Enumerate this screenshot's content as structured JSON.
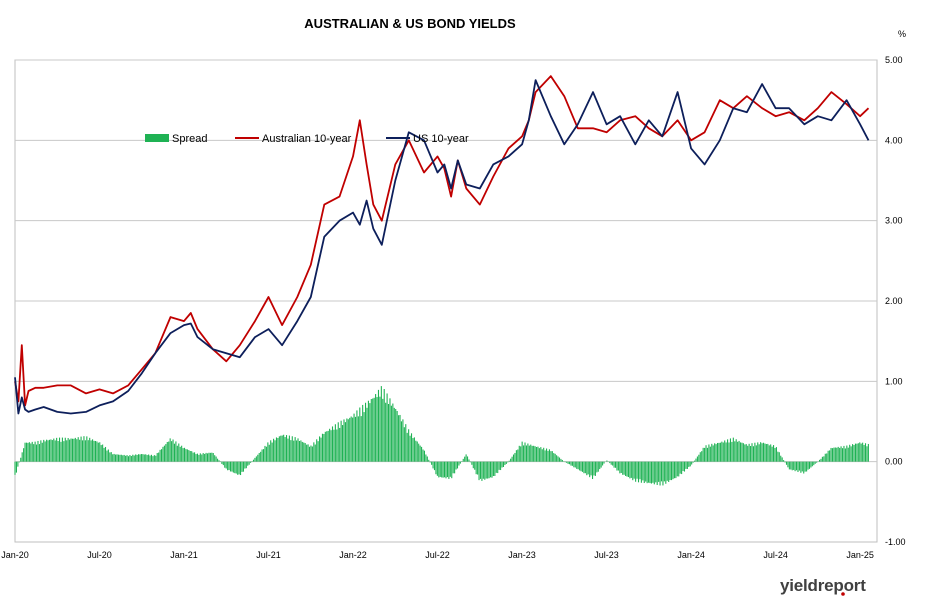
{
  "chart_data": {
    "type": "line",
    "title": "AUSTRALIAN & US BOND YIELDS",
    "unit_label": "%",
    "xlabel": "",
    "ylabel": "",
    "y_axis_position": "right",
    "ylim": [
      -1.0,
      5.0
    ],
    "yticks": [
      "-1.00",
      "0.00",
      "1.00",
      "2.00",
      "3.00",
      "4.00",
      "5.00"
    ],
    "xlim": [
      "Jan-20",
      "Jan-25"
    ],
    "xticks": [
      "Jan-20",
      "Jul-20",
      "Jan-21",
      "Jul-21",
      "Jan-22",
      "Jul-22",
      "Jan-23",
      "Jul-23",
      "Jan-24",
      "Jul-24",
      "Jan-25"
    ],
    "grid": "horizontal",
    "legend_position": "upper-left",
    "series": [
      {
        "name": "Spread",
        "type": "bar",
        "color": "#1fb254",
        "x": [
          0.0,
          0.06,
          0.12,
          0.18,
          0.25,
          0.33,
          0.42,
          0.5,
          0.58,
          0.67,
          0.75,
          0.83,
          0.92,
          1.0,
          1.08,
          1.17,
          1.25,
          1.33,
          1.42,
          1.5,
          1.58,
          1.67,
          1.75,
          1.83,
          1.92,
          2.0,
          2.08,
          2.17,
          2.25,
          2.33,
          2.42,
          2.5,
          2.58,
          2.67,
          2.75,
          2.83,
          2.92,
          3.0,
          3.08,
          3.17,
          3.25,
          3.33,
          3.42,
          3.5,
          3.58,
          3.67,
          3.75,
          3.83,
          3.92,
          4.0,
          4.08,
          4.17,
          4.25,
          4.33,
          4.42,
          4.5,
          4.58,
          4.67,
          4.75,
          4.83,
          4.92,
          5.0,
          5.05
        ],
        "values": [
          -0.2,
          0.25,
          0.25,
          0.28,
          0.3,
          0.3,
          0.32,
          0.25,
          0.1,
          0.08,
          0.1,
          0.08,
          0.3,
          0.18,
          0.1,
          0.12,
          -0.1,
          -0.18,
          0.05,
          0.25,
          0.35,
          0.3,
          0.2,
          0.38,
          0.5,
          0.6,
          0.75,
          0.95,
          0.7,
          0.4,
          0.15,
          -0.2,
          -0.22,
          0.1,
          -0.25,
          -0.2,
          0.0,
          0.25,
          0.2,
          0.15,
          0.0,
          -0.1,
          -0.22,
          0.02,
          -0.15,
          -0.25,
          -0.28,
          -0.3,
          -0.2,
          -0.05,
          0.2,
          0.25,
          0.3,
          0.22,
          0.25,
          0.2,
          -0.1,
          -0.15,
          0.0,
          0.18,
          0.2,
          0.25,
          0.22
        ]
      },
      {
        "name": "Australian 10-year",
        "type": "line",
        "color": "#c00000",
        "x": [
          0.0,
          0.02,
          0.04,
          0.06,
          0.08,
          0.12,
          0.17,
          0.25,
          0.33,
          0.42,
          0.5,
          0.58,
          0.67,
          0.75,
          0.83,
          0.92,
          1.0,
          1.04,
          1.08,
          1.17,
          1.25,
          1.33,
          1.42,
          1.5,
          1.58,
          1.67,
          1.75,
          1.83,
          1.92,
          2.0,
          2.04,
          2.08,
          2.12,
          2.17,
          2.25,
          2.33,
          2.42,
          2.5,
          2.54,
          2.58,
          2.62,
          2.67,
          2.75,
          2.83,
          2.92,
          3.0,
          3.04,
          3.08,
          3.17,
          3.25,
          3.33,
          3.42,
          3.5,
          3.58,
          3.67,
          3.75,
          3.83,
          3.92,
          4.0,
          4.08,
          4.17,
          4.25,
          4.33,
          4.42,
          4.5,
          4.58,
          4.67,
          4.75,
          4.83,
          4.92,
          5.0,
          5.05
        ],
        "values": [
          1.0,
          0.75,
          1.45,
          0.7,
          0.88,
          0.92,
          0.92,
          0.95,
          0.95,
          0.85,
          0.9,
          0.85,
          0.95,
          1.15,
          1.35,
          1.8,
          1.75,
          1.85,
          1.65,
          1.4,
          1.25,
          1.45,
          1.75,
          2.05,
          1.7,
          2.05,
          2.45,
          3.2,
          3.3,
          3.8,
          4.25,
          3.7,
          3.2,
          3.0,
          3.7,
          4.0,
          3.6,
          3.8,
          3.65,
          3.3,
          3.75,
          3.4,
          3.2,
          3.55,
          3.9,
          4.05,
          4.25,
          4.6,
          4.8,
          4.55,
          4.15,
          4.15,
          4.1,
          4.25,
          4.3,
          4.15,
          4.05,
          4.25,
          4.0,
          4.1,
          4.5,
          4.4,
          4.55,
          4.4,
          4.3,
          4.35,
          4.25,
          4.4,
          4.6,
          4.45,
          4.3,
          4.4
        ]
      },
      {
        "name": "US 10-year",
        "type": "line",
        "color": "#0d1f5b",
        "x": [
          0.0,
          0.02,
          0.04,
          0.06,
          0.08,
          0.12,
          0.17,
          0.25,
          0.33,
          0.42,
          0.5,
          0.58,
          0.67,
          0.75,
          0.83,
          0.92,
          1.0,
          1.04,
          1.08,
          1.17,
          1.25,
          1.33,
          1.42,
          1.5,
          1.58,
          1.67,
          1.75,
          1.83,
          1.92,
          2.0,
          2.04,
          2.08,
          2.12,
          2.17,
          2.25,
          2.33,
          2.42,
          2.5,
          2.54,
          2.58,
          2.62,
          2.67,
          2.75,
          2.83,
          2.92,
          3.0,
          3.04,
          3.08,
          3.17,
          3.25,
          3.33,
          3.42,
          3.5,
          3.58,
          3.67,
          3.75,
          3.83,
          3.92,
          4.0,
          4.08,
          4.17,
          4.25,
          4.33,
          4.42,
          4.5,
          4.58,
          4.67,
          4.75,
          4.83,
          4.92,
          5.0,
          5.05
        ],
        "values": [
          1.05,
          0.6,
          0.8,
          0.65,
          0.62,
          0.65,
          0.68,
          0.62,
          0.6,
          0.62,
          0.7,
          0.75,
          0.88,
          1.1,
          1.35,
          1.6,
          1.7,
          1.72,
          1.55,
          1.4,
          1.35,
          1.3,
          1.55,
          1.65,
          1.45,
          1.75,
          2.05,
          2.8,
          3.0,
          3.1,
          2.95,
          3.25,
          2.9,
          2.7,
          3.5,
          4.1,
          4.0,
          3.6,
          3.7,
          3.4,
          3.75,
          3.45,
          3.4,
          3.7,
          3.8,
          3.95,
          4.25,
          4.75,
          4.3,
          3.95,
          4.2,
          4.6,
          4.2,
          4.3,
          3.95,
          4.25,
          4.05,
          4.6,
          3.9,
          3.7,
          4.0,
          4.4,
          4.35,
          4.7,
          4.4,
          4.4,
          4.2,
          4.3,
          4.25,
          4.5,
          4.2,
          4.0
        ]
      }
    ]
  },
  "brand": {
    "logo_text": "yieldreport"
  }
}
